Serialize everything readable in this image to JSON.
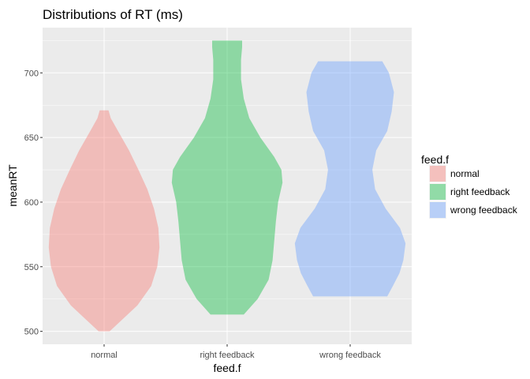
{
  "chart_data": {
    "type": "violin",
    "title": "Distributions of RT (ms)",
    "xlabel": "feed.f",
    "ylabel": "meanRT",
    "ylim": [
      490,
      735
    ],
    "yticks": [
      500,
      550,
      600,
      650,
      700
    ],
    "y_tick_labels": [
      "500",
      "550",
      "600",
      "650",
      "700"
    ],
    "categories": [
      "normal",
      "right feedback",
      "wrong feedback"
    ],
    "grid": true,
    "legend": {
      "title": "feed.f",
      "position": "right",
      "entries": [
        "normal",
        "right feedback",
        "wrong feedback"
      ]
    },
    "series": [
      {
        "name": "normal",
        "color": "#F8766D",
        "min": 500,
        "max": 671,
        "density": [
          [
            500,
            0.1
          ],
          [
            508,
            0.3
          ],
          [
            520,
            0.6
          ],
          [
            535,
            0.85
          ],
          [
            550,
            0.96
          ],
          [
            565,
            1.0
          ],
          [
            580,
            0.98
          ],
          [
            595,
            0.9
          ],
          [
            610,
            0.78
          ],
          [
            625,
            0.62
          ],
          [
            640,
            0.45
          ],
          [
            655,
            0.25
          ],
          [
            665,
            0.12
          ],
          [
            671,
            0.08
          ]
        ]
      },
      {
        "name": "right feedback",
        "color": "#00BA38",
        "min": 513,
        "max": 725,
        "density": [
          [
            513,
            0.3
          ],
          [
            525,
            0.55
          ],
          [
            540,
            0.75
          ],
          [
            555,
            0.82
          ],
          [
            570,
            0.85
          ],
          [
            585,
            0.88
          ],
          [
            600,
            0.92
          ],
          [
            615,
            1.0
          ],
          [
            625,
            0.98
          ],
          [
            635,
            0.85
          ],
          [
            650,
            0.6
          ],
          [
            665,
            0.4
          ],
          [
            680,
            0.3
          ],
          [
            695,
            0.25
          ],
          [
            710,
            0.25
          ],
          [
            720,
            0.27
          ],
          [
            725,
            0.27
          ]
        ]
      },
      {
        "name": "wrong feedback",
        "color": "#619CFF",
        "min": 527,
        "max": 709,
        "density": [
          [
            527,
            0.67
          ],
          [
            535,
            0.77
          ],
          [
            545,
            0.89
          ],
          [
            555,
            0.96
          ],
          [
            568,
            1.0
          ],
          [
            580,
            0.9
          ],
          [
            595,
            0.64
          ],
          [
            610,
            0.45
          ],
          [
            625,
            0.4
          ],
          [
            640,
            0.47
          ],
          [
            655,
            0.67
          ],
          [
            670,
            0.75
          ],
          [
            685,
            0.79
          ],
          [
            700,
            0.7
          ],
          [
            709,
            0.58
          ]
        ]
      }
    ]
  }
}
